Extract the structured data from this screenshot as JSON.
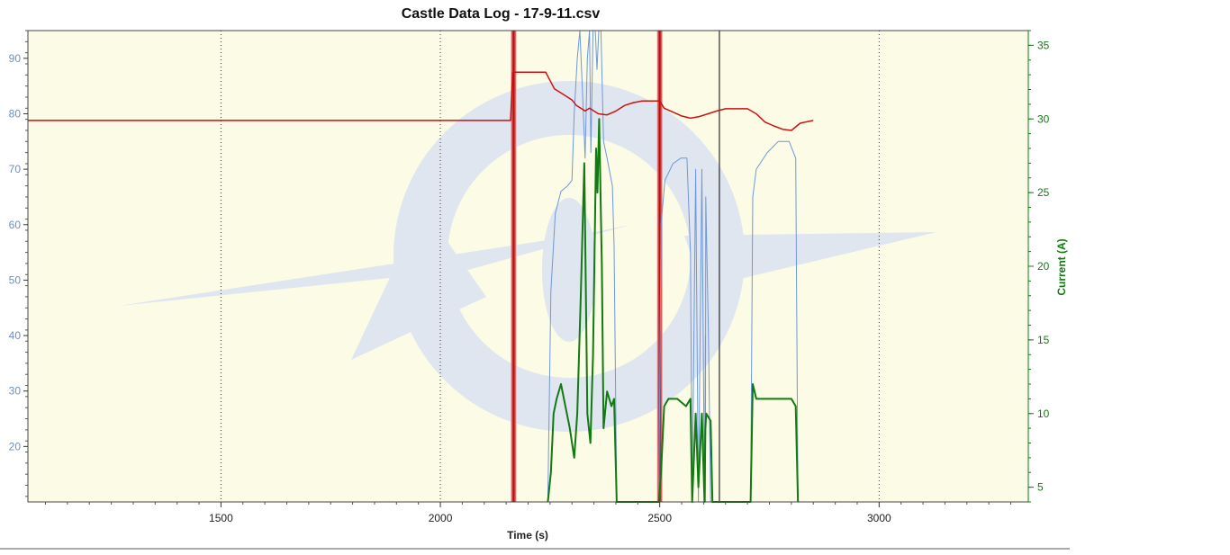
{
  "chart_data": {
    "type": "line",
    "title": "Castle Data Log - 17-9-11.csv",
    "xlabel": "Time (s)",
    "ylabel": "",
    "y2label": "Current (A)",
    "xlim": [
      1060,
      3340
    ],
    "ylim": [
      10,
      95
    ],
    "y2lim": [
      4,
      36
    ],
    "x_ticks": [
      1500,
      2000,
      2500,
      3000
    ],
    "y_ticks": [
      20,
      30,
      40,
      50,
      60,
      70,
      80,
      90
    ],
    "y2_ticks": [
      5,
      10,
      15,
      20,
      25,
      30,
      35
    ],
    "grid": true,
    "background_color": "#fbfbe6",
    "markers": {
      "red_bands": [
        2167,
        2500
      ],
      "black_line": 2636
    },
    "series": [
      {
        "name": "",
        "axis": "left",
        "color": "#cc1111",
        "x": [
          1060,
          1500,
          2000,
          2160,
          2165,
          2175,
          2240,
          2260,
          2280,
          2300,
          2310,
          2320,
          2330,
          2340,
          2360,
          2380,
          2400,
          2420,
          2440,
          2460,
          2480,
          2500,
          2510,
          2530,
          2550,
          2570,
          2590,
          2610,
          2630,
          2650,
          2680,
          2700,
          2720,
          2740,
          2760,
          2780,
          2800,
          2820,
          2850
        ],
        "values": [
          78.8,
          78.8,
          78.8,
          78.8,
          87.5,
          87.5,
          87.5,
          84.5,
          83.5,
          82.5,
          81.5,
          81.0,
          80.5,
          81.0,
          80.0,
          79.8,
          80.5,
          81.5,
          82.0,
          82.3,
          82.3,
          82.3,
          81.0,
          80.3,
          79.6,
          79.2,
          79.5,
          80.0,
          80.5,
          80.9,
          80.9,
          80.9,
          80.0,
          78.5,
          77.8,
          77.2,
          77.0,
          78.3,
          78.8
        ]
      },
      {
        "name": "",
        "axis": "left",
        "color": "#6f97dc",
        "x": [
          2245,
          2252,
          2262,
          2275,
          2290,
          2300,
          2305,
          2312,
          2318,
          2325,
          2330,
          2335,
          2340,
          2343,
          2348,
          2353,
          2357,
          2361,
          2366,
          2372,
          2380,
          2392,
          2396,
          2402,
          2498,
          2503,
          2512,
          2530,
          2548,
          2562,
          2570,
          2574,
          2582,
          2588,
          2596,
          2602,
          2604,
          2604,
          2605,
          2611,
          2616,
          2620,
          2707,
          2712,
          2720,
          2745,
          2770,
          2795,
          2810,
          2815
        ],
        "values": [
          10,
          48,
          62,
          66,
          67,
          68,
          80,
          90,
          98,
          82,
          72,
          90,
          96,
          73,
          96,
          98,
          88,
          96,
          95,
          75,
          72,
          67,
          56,
          10,
          10,
          60,
          68,
          71,
          72,
          72,
          55,
          10,
          70,
          10,
          70,
          10,
          40,
          10,
          65,
          40,
          10,
          10,
          10,
          65,
          70,
          73,
          75,
          75,
          72,
          10
        ],
        "y_unit": "left"
      },
      {
        "name": "",
        "axis": "right",
        "color": "#117a11",
        "x": [
          2245,
          2252,
          2258,
          2265,
          2275,
          2285,
          2295,
          2305,
          2312,
          2320,
          2328,
          2335,
          2342,
          2348,
          2355,
          2358,
          2362,
          2368,
          2372,
          2380,
          2390,
          2396,
          2402,
          2498,
          2503,
          2510,
          2520,
          2540,
          2560,
          2570,
          2574,
          2582,
          2588,
          2596,
          2602,
          2604,
          2606,
          2616,
          2620,
          2707,
          2712,
          2720,
          2740,
          2760,
          2780,
          2800,
          2810,
          2815
        ],
        "values": [
          4,
          6,
          10,
          11,
          12,
          10.5,
          9,
          7,
          10,
          18,
          27,
          10,
          8,
          14,
          28,
          25,
          30,
          20,
          9,
          11.5,
          10.5,
          11,
          4,
          4,
          6,
          10.5,
          11,
          11,
          10.5,
          11,
          4,
          10,
          5,
          10,
          4,
          9,
          10,
          9.5,
          4,
          4,
          12,
          11,
          11,
          11,
          11,
          11,
          10.5,
          4
        ]
      }
    ]
  }
}
